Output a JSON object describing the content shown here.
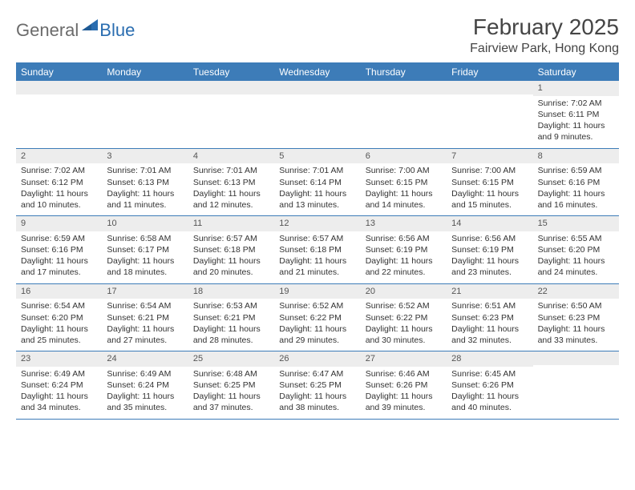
{
  "logo": {
    "general": "General",
    "blue": "Blue"
  },
  "title": "February 2025",
  "location": "Fairview Park, Hong Kong",
  "colors": {
    "header_bg": "#3d7cb8",
    "header_text": "#ffffff",
    "daynum_bg": "#ededed",
    "border": "#3d7cb8",
    "logo_gray": "#6b6b6b",
    "logo_blue": "#2a6db0"
  },
  "daynames": [
    "Sunday",
    "Monday",
    "Tuesday",
    "Wednesday",
    "Thursday",
    "Friday",
    "Saturday"
  ],
  "weeks": [
    [
      {
        "n": "",
        "sunrise": "",
        "sunset": "",
        "daylight": ""
      },
      {
        "n": "",
        "sunrise": "",
        "sunset": "",
        "daylight": ""
      },
      {
        "n": "",
        "sunrise": "",
        "sunset": "",
        "daylight": ""
      },
      {
        "n": "",
        "sunrise": "",
        "sunset": "",
        "daylight": ""
      },
      {
        "n": "",
        "sunrise": "",
        "sunset": "",
        "daylight": ""
      },
      {
        "n": "",
        "sunrise": "",
        "sunset": "",
        "daylight": ""
      },
      {
        "n": "1",
        "sunrise": "Sunrise: 7:02 AM",
        "sunset": "Sunset: 6:11 PM",
        "daylight": "Daylight: 11 hours and 9 minutes."
      }
    ],
    [
      {
        "n": "2",
        "sunrise": "Sunrise: 7:02 AM",
        "sunset": "Sunset: 6:12 PM",
        "daylight": "Daylight: 11 hours and 10 minutes."
      },
      {
        "n": "3",
        "sunrise": "Sunrise: 7:01 AM",
        "sunset": "Sunset: 6:13 PM",
        "daylight": "Daylight: 11 hours and 11 minutes."
      },
      {
        "n": "4",
        "sunrise": "Sunrise: 7:01 AM",
        "sunset": "Sunset: 6:13 PM",
        "daylight": "Daylight: 11 hours and 12 minutes."
      },
      {
        "n": "5",
        "sunrise": "Sunrise: 7:01 AM",
        "sunset": "Sunset: 6:14 PM",
        "daylight": "Daylight: 11 hours and 13 minutes."
      },
      {
        "n": "6",
        "sunrise": "Sunrise: 7:00 AM",
        "sunset": "Sunset: 6:15 PM",
        "daylight": "Daylight: 11 hours and 14 minutes."
      },
      {
        "n": "7",
        "sunrise": "Sunrise: 7:00 AM",
        "sunset": "Sunset: 6:15 PM",
        "daylight": "Daylight: 11 hours and 15 minutes."
      },
      {
        "n": "8",
        "sunrise": "Sunrise: 6:59 AM",
        "sunset": "Sunset: 6:16 PM",
        "daylight": "Daylight: 11 hours and 16 minutes."
      }
    ],
    [
      {
        "n": "9",
        "sunrise": "Sunrise: 6:59 AM",
        "sunset": "Sunset: 6:16 PM",
        "daylight": "Daylight: 11 hours and 17 minutes."
      },
      {
        "n": "10",
        "sunrise": "Sunrise: 6:58 AM",
        "sunset": "Sunset: 6:17 PM",
        "daylight": "Daylight: 11 hours and 18 minutes."
      },
      {
        "n": "11",
        "sunrise": "Sunrise: 6:57 AM",
        "sunset": "Sunset: 6:18 PM",
        "daylight": "Daylight: 11 hours and 20 minutes."
      },
      {
        "n": "12",
        "sunrise": "Sunrise: 6:57 AM",
        "sunset": "Sunset: 6:18 PM",
        "daylight": "Daylight: 11 hours and 21 minutes."
      },
      {
        "n": "13",
        "sunrise": "Sunrise: 6:56 AM",
        "sunset": "Sunset: 6:19 PM",
        "daylight": "Daylight: 11 hours and 22 minutes."
      },
      {
        "n": "14",
        "sunrise": "Sunrise: 6:56 AM",
        "sunset": "Sunset: 6:19 PM",
        "daylight": "Daylight: 11 hours and 23 minutes."
      },
      {
        "n": "15",
        "sunrise": "Sunrise: 6:55 AM",
        "sunset": "Sunset: 6:20 PM",
        "daylight": "Daylight: 11 hours and 24 minutes."
      }
    ],
    [
      {
        "n": "16",
        "sunrise": "Sunrise: 6:54 AM",
        "sunset": "Sunset: 6:20 PM",
        "daylight": "Daylight: 11 hours and 25 minutes."
      },
      {
        "n": "17",
        "sunrise": "Sunrise: 6:54 AM",
        "sunset": "Sunset: 6:21 PM",
        "daylight": "Daylight: 11 hours and 27 minutes."
      },
      {
        "n": "18",
        "sunrise": "Sunrise: 6:53 AM",
        "sunset": "Sunset: 6:21 PM",
        "daylight": "Daylight: 11 hours and 28 minutes."
      },
      {
        "n": "19",
        "sunrise": "Sunrise: 6:52 AM",
        "sunset": "Sunset: 6:22 PM",
        "daylight": "Daylight: 11 hours and 29 minutes."
      },
      {
        "n": "20",
        "sunrise": "Sunrise: 6:52 AM",
        "sunset": "Sunset: 6:22 PM",
        "daylight": "Daylight: 11 hours and 30 minutes."
      },
      {
        "n": "21",
        "sunrise": "Sunrise: 6:51 AM",
        "sunset": "Sunset: 6:23 PM",
        "daylight": "Daylight: 11 hours and 32 minutes."
      },
      {
        "n": "22",
        "sunrise": "Sunrise: 6:50 AM",
        "sunset": "Sunset: 6:23 PM",
        "daylight": "Daylight: 11 hours and 33 minutes."
      }
    ],
    [
      {
        "n": "23",
        "sunrise": "Sunrise: 6:49 AM",
        "sunset": "Sunset: 6:24 PM",
        "daylight": "Daylight: 11 hours and 34 minutes."
      },
      {
        "n": "24",
        "sunrise": "Sunrise: 6:49 AM",
        "sunset": "Sunset: 6:24 PM",
        "daylight": "Daylight: 11 hours and 35 minutes."
      },
      {
        "n": "25",
        "sunrise": "Sunrise: 6:48 AM",
        "sunset": "Sunset: 6:25 PM",
        "daylight": "Daylight: 11 hours and 37 minutes."
      },
      {
        "n": "26",
        "sunrise": "Sunrise: 6:47 AM",
        "sunset": "Sunset: 6:25 PM",
        "daylight": "Daylight: 11 hours and 38 minutes."
      },
      {
        "n": "27",
        "sunrise": "Sunrise: 6:46 AM",
        "sunset": "Sunset: 6:26 PM",
        "daylight": "Daylight: 11 hours and 39 minutes."
      },
      {
        "n": "28",
        "sunrise": "Sunrise: 6:45 AM",
        "sunset": "Sunset: 6:26 PM",
        "daylight": "Daylight: 11 hours and 40 minutes."
      },
      {
        "n": "",
        "sunrise": "",
        "sunset": "",
        "daylight": ""
      }
    ]
  ]
}
